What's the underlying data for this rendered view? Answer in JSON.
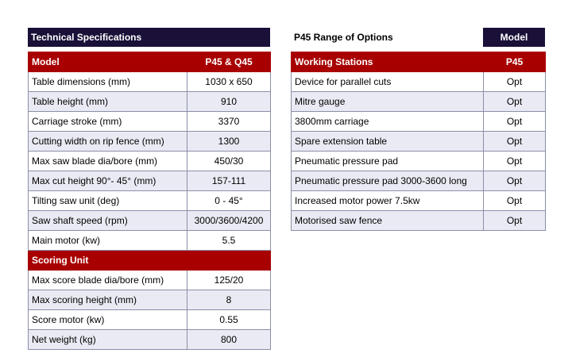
{
  "left": {
    "section_title": "Technical Specifications",
    "header": {
      "label": "Model",
      "value": "P45 & Q45"
    },
    "rows": [
      {
        "label": "Table dimensions (mm)",
        "value": "1030 x 650"
      },
      {
        "label": "Table height (mm)",
        "value": "910"
      },
      {
        "label": "Carriage stroke (mm)",
        "value": "3370"
      },
      {
        "label": "Cutting width on rip fence (mm)",
        "value": "1300"
      },
      {
        "label": "Max saw blade dia/bore (mm)",
        "value": "450/30"
      },
      {
        "label": "Max cut height 90°- 45° (mm)",
        "value": "157-111"
      },
      {
        "label": "Tilting saw unit (deg)",
        "value": "0 - 45°"
      },
      {
        "label": "Saw shaft speed (rpm)",
        "value": "3000/3600/4200"
      },
      {
        "label": "Main motor (kw)",
        "value": "5.5"
      }
    ],
    "subheader": {
      "label": "Scoring Unit",
      "value": ""
    },
    "rows2": [
      {
        "label": "Max score blade dia/bore (mm)",
        "value": "125/20"
      },
      {
        "label": "Max scoring height (mm)",
        "value": "8"
      },
      {
        "label": "Score motor (kw)",
        "value": "0.55"
      },
      {
        "label": "Net weight (kg)",
        "value": "800"
      }
    ]
  },
  "right": {
    "section_title": "P45 Range of Options",
    "model_label": "Model",
    "header": {
      "label": "Working Stations",
      "value": "P45"
    },
    "rows": [
      {
        "label": "Device for parallel cuts",
        "value": "Opt"
      },
      {
        "label": "Mitre gauge",
        "value": "Opt"
      },
      {
        "label": "3800mm carriage",
        "value": "Opt"
      },
      {
        "label": "Spare extension table",
        "value": "Opt"
      },
      {
        "label": "Pneumatic pressure pad",
        "value": "Opt"
      },
      {
        "label": "Pneumatic pressure pad 3000-3600 long",
        "value": "Opt"
      },
      {
        "label": "Increased motor power 7.5kw",
        "value": "Opt"
      },
      {
        "label": "Motorised saw fence",
        "value": "Opt"
      }
    ]
  },
  "colors": {
    "navy": "#1a1038",
    "red": "#a80000",
    "row_alt": "#eaeaf4",
    "border": "#8a8fa8"
  }
}
